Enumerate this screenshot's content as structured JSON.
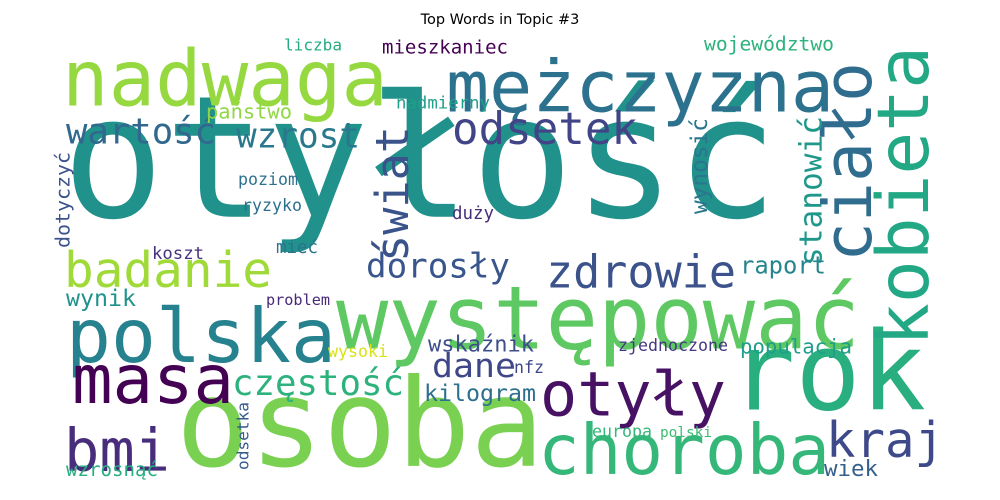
{
  "chart_data": {
    "type": "wordcloud",
    "title": "Top Words in Topic #3",
    "words": [
      {
        "text": "otyłość",
        "color": "#21918c"
      },
      {
        "text": "osoba",
        "color": "#7ad151"
      },
      {
        "text": "rok",
        "color": "#29af7f"
      },
      {
        "text": "występować",
        "color": "#5ec962"
      },
      {
        "text": "mężczyzna",
        "color": "#2c728e"
      },
      {
        "text": "nadwaga",
        "color": "#95d840"
      },
      {
        "text": "kobieta",
        "color": "#22a884"
      },
      {
        "text": "polska",
        "color": "#26828e"
      },
      {
        "text": "ciało",
        "color": "#2f6c8e"
      },
      {
        "text": "choroba",
        "color": "#35b779"
      },
      {
        "text": "otyły",
        "color": "#471164"
      },
      {
        "text": "masa",
        "color": "#440154"
      },
      {
        "text": "bmi",
        "color": "#472d7b"
      },
      {
        "text": "badanie",
        "color": "#a0da39"
      },
      {
        "text": "zdrowie",
        "color": "#3b528b"
      },
      {
        "text": "kraj",
        "color": "#3e4989"
      },
      {
        "text": "odsetek",
        "color": "#414487"
      },
      {
        "text": "częstość",
        "color": "#2db27d"
      },
      {
        "text": "wartość",
        "color": "#31688e"
      },
      {
        "text": "wzrost",
        "color": "#2a788e"
      },
      {
        "text": "świat",
        "color": "#3a538b"
      },
      {
        "text": "dorosły",
        "color": "#39568c"
      },
      {
        "text": "stanowić",
        "color": "#1f988b"
      },
      {
        "text": "dane",
        "color": "#3f4788"
      },
      {
        "text": "kilogram",
        "color": "#2d708e"
      },
      {
        "text": "wynosić",
        "color": "#2a768e"
      },
      {
        "text": "wskaźnik",
        "color": "#3d4e8a"
      },
      {
        "text": "raport",
        "color": "#25848e"
      },
      {
        "text": "populacja",
        "color": "#1f9e89"
      },
      {
        "text": "wynik",
        "color": "#20928c"
      },
      {
        "text": "mieszkaniec",
        "color": "#440154"
      },
      {
        "text": "dotyczyć",
        "color": "#3b528b"
      },
      {
        "text": "wiek",
        "color": "#355f8d"
      },
      {
        "text": "wzrosnąć",
        "color": "#26ad81"
      },
      {
        "text": "liczba",
        "color": "#25ab82"
      },
      {
        "text": "województwo",
        "color": "#2db27d"
      },
      {
        "text": "państwo",
        "color": "#8fd744"
      },
      {
        "text": "nadmierny",
        "color": "#1fa088"
      },
      {
        "text": "poziom",
        "color": "#2c728e"
      },
      {
        "text": "ryzyko",
        "color": "#2e6e8e"
      },
      {
        "text": "duży",
        "color": "#472c7a"
      },
      {
        "text": "koszt",
        "color": "#46327e"
      },
      {
        "text": "mieć",
        "color": "#2c728e"
      },
      {
        "text": "problem",
        "color": "#482878"
      },
      {
        "text": "odsetka",
        "color": "#365d8d"
      },
      {
        "text": "wysoki",
        "color": "#d8e219"
      },
      {
        "text": "nfz",
        "color": "#3f4788"
      },
      {
        "text": "zjednoczone",
        "color": "#453781"
      },
      {
        "text": "europa",
        "color": "#35b779"
      },
      {
        "text": "polski",
        "color": "#3dbc74"
      }
    ]
  }
}
